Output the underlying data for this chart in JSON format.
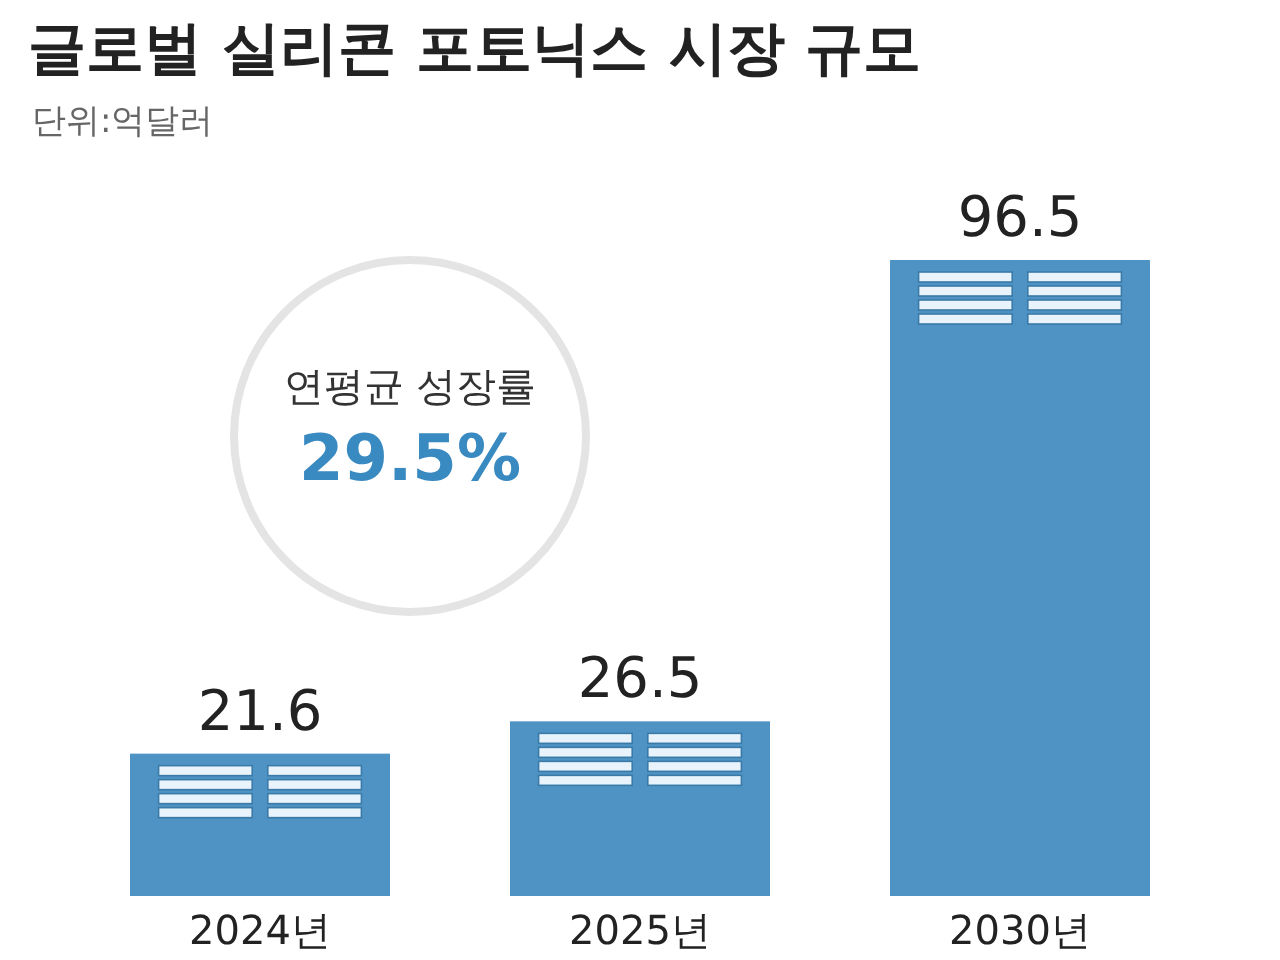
{
  "chart_data": {
    "type": "bar",
    "title": "글로벌 실리콘 포토닉스 시장 규모",
    "subtitle": "단위:억달러",
    "categories": [
      "2024년",
      "2025년",
      "2030년"
    ],
    "values": [
      21.6,
      26.5,
      96.5
    ],
    "color": "#4f93c4",
    "data_labels": true,
    "annotations": [
      "연평균 성장률",
      "29.5%"
    ]
  }
}
